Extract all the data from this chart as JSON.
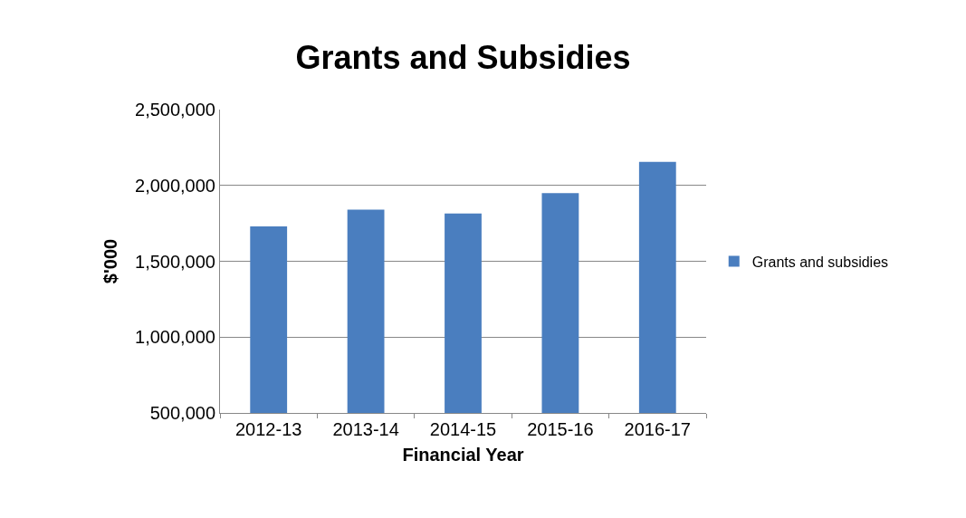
{
  "chart_data": {
    "type": "bar",
    "title": "Grants and Subsidies",
    "xlabel": "Financial Year",
    "ylabel": "$'000",
    "categories": [
      "2012-13",
      "2013-14",
      "2014-15",
      "2015-16",
      "2016-17"
    ],
    "series": [
      {
        "name": "Grants and subsidies",
        "color": "#4a7ebf",
        "values": [
          1730000,
          1840000,
          1815000,
          1950000,
          2155000
        ]
      }
    ],
    "ylim": [
      500000,
      2500000
    ],
    "yticks": [
      {
        "value": 500000,
        "label": "500,000"
      },
      {
        "value": 1000000,
        "label": "1,000,000"
      },
      {
        "value": 1500000,
        "label": "1,500,000"
      },
      {
        "value": 2000000,
        "label": "2,000,000"
      },
      {
        "value": 2500000,
        "label": "2,500,000"
      }
    ],
    "grid": "y",
    "legend": "right"
  }
}
